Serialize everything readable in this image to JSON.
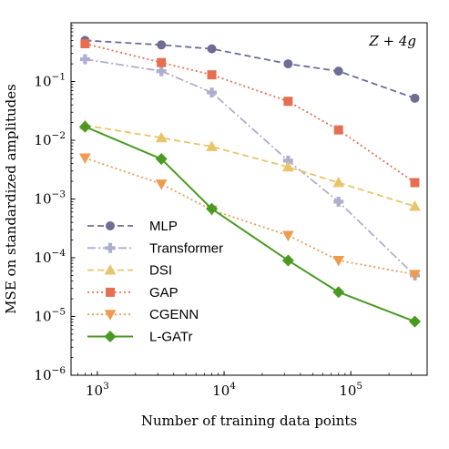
{
  "chart_data": {
    "type": "line",
    "xscale": "log",
    "yscale": "log",
    "xlabel": "Number of training data points",
    "ylabel": "MSE on standardized amplitudes",
    "xlim": [
      620,
      400000
    ],
    "ylim": [
      1e-06,
      1
    ],
    "xticks": [
      {
        "value": 1000,
        "mant": "10",
        "exp": "3"
      },
      {
        "value": 10000,
        "mant": "10",
        "exp": "4"
      },
      {
        "value": 100000,
        "mant": "10",
        "exp": "5"
      }
    ],
    "yticks": [
      {
        "value": 1e-06,
        "mant": "10",
        "exp": "−6"
      },
      {
        "value": 1e-05,
        "mant": "10",
        "exp": "−5"
      },
      {
        "value": 0.0001,
        "mant": "10",
        "exp": "−4"
      },
      {
        "value": 0.001,
        "mant": "10",
        "exp": "−3"
      },
      {
        "value": 0.01,
        "mant": "10",
        "exp": "−2"
      },
      {
        "value": 0.1,
        "mant": "10",
        "exp": "−1"
      }
    ],
    "annotation": "Z + 4g",
    "legend_position": "lower-left",
    "x": [
      800,
      3200,
      8000,
      32000,
      80000,
      320000
    ],
    "series": [
      {
        "name": "MLP",
        "color": "#6e6d96",
        "marker": "circle",
        "dash": "7,4",
        "values": [
          0.5,
          0.42,
          0.36,
          0.2,
          0.15,
          0.052
        ]
      },
      {
        "name": "Transformer",
        "color": "#b0aed0",
        "marker": "plus",
        "dash": "9,3,2,3",
        "values": [
          0.24,
          0.15,
          0.065,
          0.0045,
          0.0009,
          5e-05
        ]
      },
      {
        "name": "DSI",
        "color": "#e9c46a",
        "marker": "triangle-up",
        "dash": "7,4",
        "values": [
          0.018,
          0.011,
          0.0078,
          0.0035,
          0.0019,
          0.00075
        ]
      },
      {
        "name": "GAP",
        "color": "#e76f51",
        "marker": "square",
        "dash": "2,3",
        "values": [
          0.44,
          0.21,
          0.13,
          0.046,
          0.015,
          0.0019
        ]
      },
      {
        "name": "CGENN",
        "color": "#ee9b4f",
        "marker": "triangle-down",
        "dash": "2,3",
        "values": [
          0.005,
          0.0018,
          0.00065,
          0.00024,
          9e-05,
          5.2e-05
        ]
      },
      {
        "name": "L-GATr",
        "color": "#4a9a22",
        "marker": "diamond",
        "dash": "",
        "values": [
          0.017,
          0.0048,
          0.00068,
          9e-05,
          2.6e-05,
          8.2e-06
        ]
      }
    ]
  }
}
